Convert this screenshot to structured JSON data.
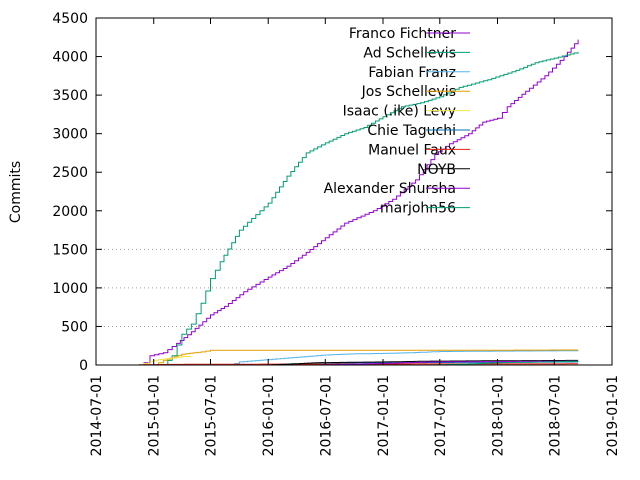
{
  "chart_data": {
    "type": "line",
    "title": "",
    "xlabel": "",
    "ylabel": "Commits",
    "ylim": [
      0,
      4500
    ],
    "xlim": [
      "2014-07-01",
      "2019-01-01"
    ],
    "grid": "horizontal, below 1500",
    "legend_position": "top-right",
    "yticks": [
      0,
      500,
      1000,
      1500,
      2000,
      2500,
      3000,
      3500,
      4000,
      4500
    ],
    "xticks": [
      "2014-07-01",
      "2015-01-01",
      "2015-07-01",
      "2016-01-01",
      "2016-07-01",
      "2017-01-01",
      "2017-07-01",
      "2018-01-01",
      "2018-07-01",
      "2019-01-01"
    ],
    "series": [
      {
        "name": "Franco Fichtner",
        "color": "#9400d3",
        "points": [
          [
            "2014-11-15",
            0
          ],
          [
            "2014-12-01",
            30
          ],
          [
            "2014-12-20",
            120
          ],
          [
            "2015-02-01",
            160
          ],
          [
            "2015-03-15",
            280
          ],
          [
            "2015-05-01",
            430
          ],
          [
            "2015-07-01",
            650
          ],
          [
            "2015-08-15",
            760
          ],
          [
            "2015-10-15",
            950
          ],
          [
            "2016-01-01",
            1140
          ],
          [
            "2016-03-01",
            1280
          ],
          [
            "2016-05-01",
            1460
          ],
          [
            "2016-07-01",
            1650
          ],
          [
            "2016-09-01",
            1840
          ],
          [
            "2016-12-01",
            2000
          ],
          [
            "2017-02-01",
            2150
          ],
          [
            "2017-04-15",
            2400
          ],
          [
            "2017-06-15",
            2730
          ],
          [
            "2017-08-01",
            2870
          ],
          [
            "2017-10-01",
            3000
          ],
          [
            "2017-11-15",
            3150
          ],
          [
            "2018-01-01",
            3200
          ],
          [
            "2018-02-01",
            3350
          ],
          [
            "2018-04-01",
            3550
          ],
          [
            "2018-06-01",
            3750
          ],
          [
            "2018-08-01",
            4000
          ],
          [
            "2018-09-15",
            4220
          ]
        ]
      },
      {
        "name": "Ad Schellevis",
        "color": "#009e73",
        "points": [
          [
            "2015-02-01",
            0
          ],
          [
            "2015-03-01",
            120
          ],
          [
            "2015-04-01",
            400
          ],
          [
            "2015-05-01",
            530
          ],
          [
            "2015-06-01",
            800
          ],
          [
            "2015-07-01",
            1120
          ],
          [
            "2015-08-01",
            1340
          ],
          [
            "2015-10-01",
            1750
          ],
          [
            "2016-01-01",
            2100
          ],
          [
            "2016-03-01",
            2450
          ],
          [
            "2016-05-01",
            2750
          ],
          [
            "2016-07-01",
            2880
          ],
          [
            "2016-09-01",
            3000
          ],
          [
            "2016-11-01",
            3080
          ],
          [
            "2017-01-01",
            3220
          ],
          [
            "2017-03-01",
            3350
          ],
          [
            "2017-05-01",
            3400
          ],
          [
            "2017-07-01",
            3480
          ],
          [
            "2017-09-01",
            3600
          ],
          [
            "2017-12-01",
            3700
          ],
          [
            "2018-03-01",
            3820
          ],
          [
            "2018-05-01",
            3920
          ],
          [
            "2018-07-01",
            3980
          ],
          [
            "2018-09-15",
            4060
          ]
        ]
      },
      {
        "name": "Fabian Franz",
        "color": "#56b4e9",
        "points": [
          [
            "2015-09-01",
            0
          ],
          [
            "2015-10-01",
            40
          ],
          [
            "2016-01-01",
            70
          ],
          [
            "2016-04-01",
            100
          ],
          [
            "2016-07-01",
            130
          ],
          [
            "2016-10-01",
            145
          ],
          [
            "2017-01-01",
            150
          ],
          [
            "2017-04-01",
            160
          ],
          [
            "2017-07-01",
            175
          ],
          [
            "2018-01-01",
            180
          ],
          [
            "2018-09-15",
            185
          ]
        ]
      },
      {
        "name": "Jos Schellevis",
        "color": "#e69f00",
        "points": [
          [
            "2015-01-01",
            0
          ],
          [
            "2015-02-01",
            60
          ],
          [
            "2015-04-01",
            140
          ],
          [
            "2015-06-01",
            170
          ],
          [
            "2015-07-01",
            190
          ],
          [
            "2016-01-01",
            190
          ],
          [
            "2017-01-01",
            190
          ],
          [
            "2018-01-01",
            192
          ],
          [
            "2018-09-15",
            195
          ]
        ]
      },
      {
        "name": "Isaac (.ike) Levy",
        "color": "#f0e442",
        "points": [
          [
            "2014-11-15",
            0
          ],
          [
            "2014-12-15",
            40
          ],
          [
            "2015-01-15",
            70
          ],
          [
            "2015-03-01",
            90
          ],
          [
            "2015-04-01",
            110
          ],
          [
            "2015-05-01",
            110
          ]
        ]
      },
      {
        "name": "Chie Taguchi",
        "color": "#0072b2",
        "points": [
          [
            "2016-01-01",
            0
          ],
          [
            "2016-03-01",
            10
          ],
          [
            "2016-06-01",
            25
          ],
          [
            "2017-01-01",
            30
          ],
          [
            "2018-01-01",
            35
          ],
          [
            "2018-09-15",
            40
          ]
        ]
      },
      {
        "name": "Manuel Faux",
        "color": "#e51e10",
        "points": [
          [
            "2014-11-01",
            0
          ],
          [
            "2014-12-01",
            5
          ],
          [
            "2015-06-01",
            10
          ],
          [
            "2016-06-01",
            12
          ],
          [
            "2017-06-01",
            14
          ],
          [
            "2018-09-15",
            15
          ]
        ]
      },
      {
        "name": "NOYB",
        "color": "#000000",
        "points": [
          [
            "2016-01-01",
            0
          ],
          [
            "2016-06-01",
            30
          ],
          [
            "2017-01-01",
            40
          ],
          [
            "2017-06-01",
            50
          ],
          [
            "2018-01-01",
            55
          ],
          [
            "2018-09-15",
            60
          ]
        ]
      },
      {
        "name": "Alexander Shursha",
        "color": "#9400d3",
        "points": [
          [
            "2016-06-01",
            0
          ],
          [
            "2017-01-01",
            20
          ],
          [
            "2017-06-01",
            40
          ],
          [
            "2018-01-01",
            45
          ],
          [
            "2018-09-15",
            50
          ]
        ]
      },
      {
        "name": "marjohn56",
        "color": "#009e73",
        "points": [
          [
            "2017-06-01",
            0
          ],
          [
            "2017-10-01",
            15
          ],
          [
            "2018-01-01",
            30
          ],
          [
            "2018-06-01",
            40
          ],
          [
            "2018-09-15",
            50
          ]
        ]
      }
    ]
  }
}
